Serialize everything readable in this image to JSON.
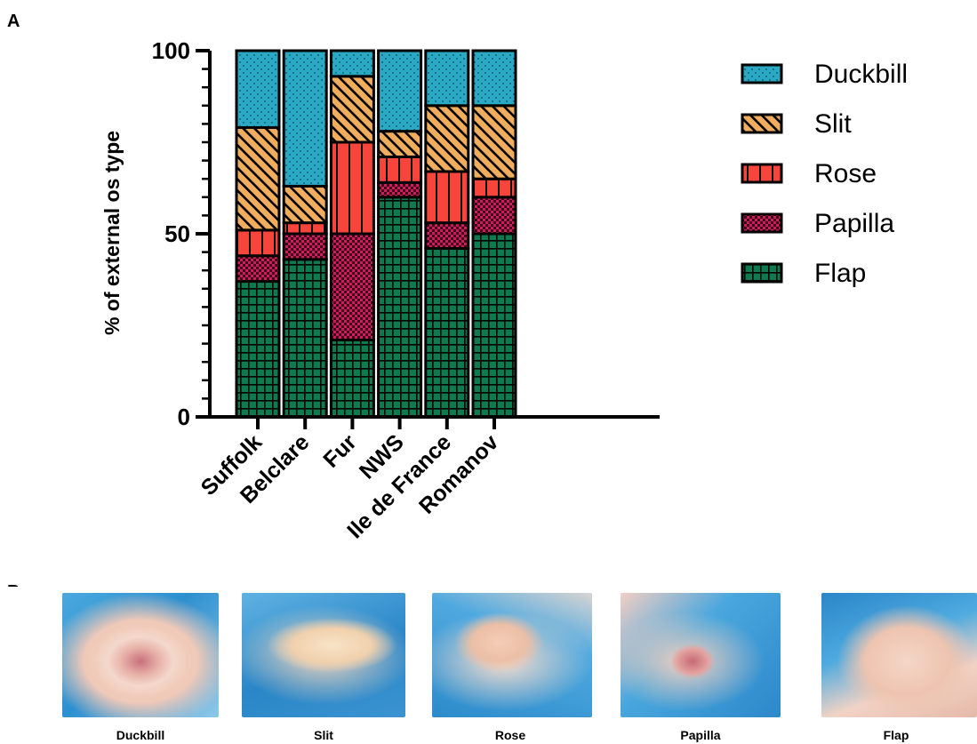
{
  "panel_a_label": "A",
  "panel_b_label": "B",
  "colors": {
    "Duckbill": "#2aa8c4",
    "Slit": "#f0ad5e",
    "Rose": "#f7453c",
    "Papilla": "#d41a5f",
    "Flap": "#0e7a50"
  },
  "chart_data": {
    "type": "bar",
    "stacked": true,
    "title": "",
    "xlabel": "",
    "ylabel": "% of external os type",
    "ylim": [
      0,
      100
    ],
    "yticks": [
      0,
      50,
      100
    ],
    "grid": false,
    "legend_position": "right",
    "categories": [
      "Suffolk",
      "Belclare",
      "Fur",
      "NWS",
      "Ile de France",
      "Romanov"
    ],
    "series": [
      {
        "name": "Flap",
        "values": [
          37,
          43,
          21,
          60,
          46,
          50
        ],
        "pattern": "grid"
      },
      {
        "name": "Papilla",
        "values": [
          7,
          7,
          29,
          4,
          7,
          10
        ],
        "pattern": "checker"
      },
      {
        "name": "Rose",
        "values": [
          7,
          3,
          25,
          7,
          14,
          5
        ],
        "pattern": "vertical"
      },
      {
        "name": "Slit",
        "values": [
          28,
          10,
          18,
          7,
          18,
          20
        ],
        "pattern": "diagonal"
      },
      {
        "name": "Duckbill",
        "values": [
          21,
          37,
          7,
          22,
          15,
          15
        ],
        "pattern": "dots"
      }
    ],
    "legend_order": [
      "Duckbill",
      "Slit",
      "Rose",
      "Papilla",
      "Flap"
    ]
  },
  "photos": [
    {
      "caption": "Duckbill"
    },
    {
      "caption": "Slit"
    },
    {
      "caption": "Rose"
    },
    {
      "caption": "Papilla"
    },
    {
      "caption": "Flap"
    }
  ]
}
